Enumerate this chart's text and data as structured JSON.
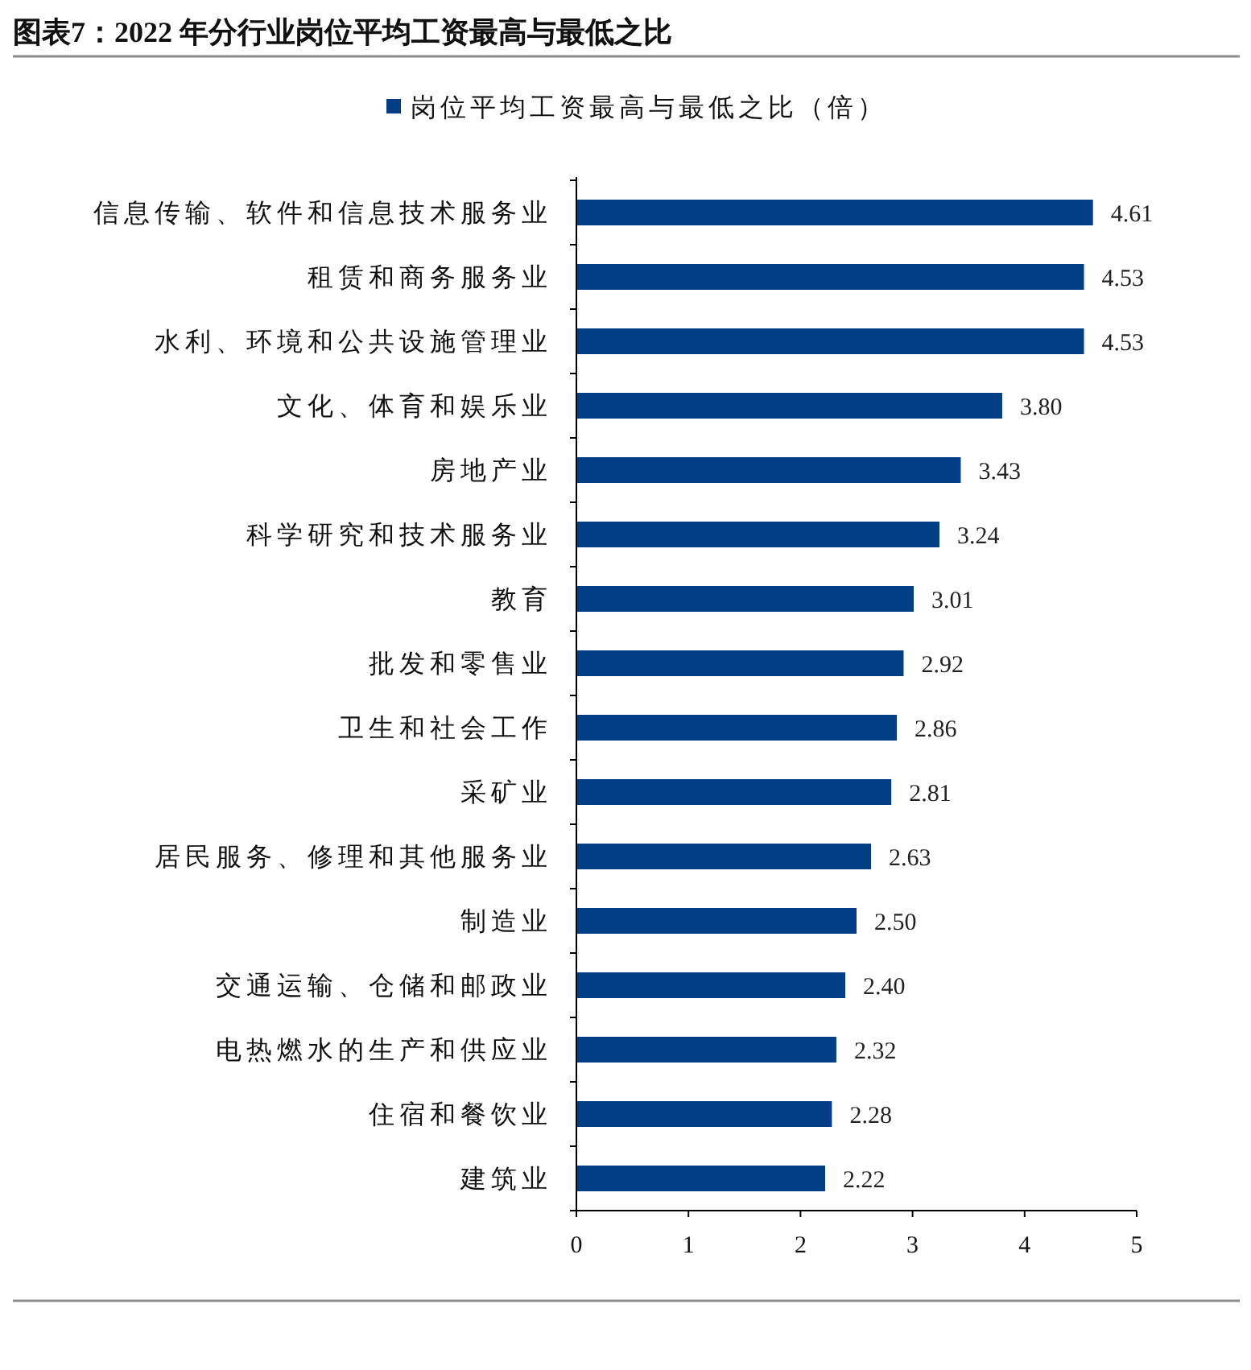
{
  "chart_data": {
    "type": "bar",
    "orientation": "horizontal",
    "title": "图表7：2022 年分行业岗位平均工资最高与最低之比",
    "categories": [
      "信息传输、软件和信息技术服务业",
      "租赁和商务服务业",
      "水利、环境和公共设施管理业",
      "文化、体育和娱乐业",
      "房地产业",
      "科学研究和技术服务业",
      "教育",
      "批发和零售业",
      "卫生和社会工作",
      "采矿业",
      "居民服务、修理和其他服务业",
      "制造业",
      "交通运输、仓储和邮政业",
      "电热燃水的生产和供应业",
      "住宿和餐饮业",
      "建筑业"
    ],
    "series": [
      {
        "name": "岗位平均工资最高与最低之比（倍）",
        "color": "#023f87",
        "values": [
          4.61,
          4.53,
          4.53,
          3.8,
          3.43,
          3.24,
          3.01,
          2.92,
          2.86,
          2.81,
          2.63,
          2.5,
          2.4,
          2.32,
          2.28,
          2.22
        ],
        "value_labels": [
          "4.61",
          "4.53",
          "4.53",
          "3.80",
          "3.43",
          "3.24",
          "3.01",
          "2.92",
          "2.86",
          "2.81",
          "2.63",
          "2.50",
          "2.40",
          "2.32",
          "2.28",
          "2.22"
        ]
      }
    ],
    "xlim": [
      0,
      5
    ],
    "xticks": [
      0,
      1,
      2,
      3,
      4,
      5
    ],
    "legend": "top"
  }
}
